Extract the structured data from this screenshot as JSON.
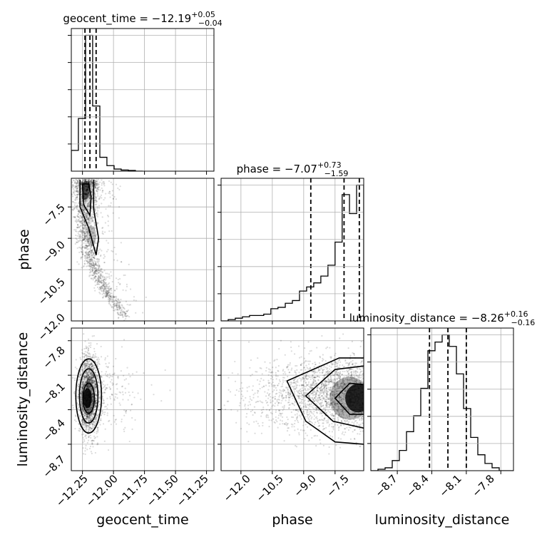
{
  "chart_data": {
    "type": "corner",
    "parameters": [
      "geocent_time",
      "phase",
      "luminosity_distance"
    ],
    "titles": [
      {
        "param": "geocent_time",
        "median": "−12.19",
        "plus": "+0.05",
        "minus": "−0.04"
      },
      {
        "param": "phase",
        "median": "−7.07",
        "plus": "+0.73",
        "minus": "−1.59"
      },
      {
        "param": "luminosity_distance",
        "median": "−8.26",
        "plus": "+0.16",
        "minus": "−0.16"
      }
    ],
    "ranges": {
      "geocent_time": [
        -12.34,
        -11.19
      ],
      "phase": [
        -12.95,
        -6.13
      ],
      "luminosity_distance": [
        -8.93,
        -7.69
      ]
    },
    "ticks": {
      "geocent_time": [
        -12.25,
        -12.0,
        -11.75,
        -11.5,
        -11.25
      ],
      "phase": [
        -12.0,
        -10.5,
        -9.0,
        -7.5
      ],
      "luminosity_distance": [
        -8.7,
        -8.4,
        -8.1,
        -7.8
      ]
    },
    "tick_labels": {
      "geocent_time": [
        "−12.25",
        "−12.00",
        "−11.75",
        "−11.50",
        "−11.25"
      ],
      "phase": [
        "−12.0",
        "−10.5",
        "−9.0",
        "−7.5"
      ],
      "luminosity_distance": [
        "−8.7",
        "−8.4",
        "−8.1",
        "−7.8"
      ]
    },
    "quantiles": {
      "geocent_time": [
        -12.23,
        -12.19,
        -12.14
      ],
      "phase": [
        -8.66,
        -7.07,
        -6.34
      ],
      "luminosity_distance": [
        -8.42,
        -8.26,
        -8.1
      ]
    },
    "histograms": {
      "geocent_time": {
        "edges": [
          -12.34,
          -12.283,
          -12.225,
          -12.168,
          -12.11,
          -12.053,
          -11.995,
          -11.938,
          -11.88,
          -11.823,
          -11.765
        ],
        "counts": [
          0.15,
          0.38,
          0.98,
          0.47,
          0.1,
          0.04,
          0.015,
          0.008,
          0.005,
          0.0
        ]
      },
      "phase": {
        "edges": [
          -12.95,
          -12.61,
          -12.27,
          -11.93,
          -11.59,
          -11.25,
          -10.91,
          -10.57,
          -10.23,
          -9.88,
          -9.54,
          -9.2,
          -8.86,
          -8.52,
          -8.18,
          -7.84,
          -7.5,
          -7.16,
          -6.81,
          -6.47,
          -6.13
        ],
        "counts": [
          0.0,
          0.01,
          0.02,
          0.03,
          0.04,
          0.04,
          0.05,
          0.09,
          0.1,
          0.13,
          0.15,
          0.22,
          0.25,
          0.28,
          0.33,
          0.41,
          0.58,
          0.93,
          0.79,
          1.0
        ]
      },
      "luminosity_distance": {
        "edges": [
          -8.93,
          -8.868,
          -8.806,
          -8.744,
          -8.682,
          -8.62,
          -8.558,
          -8.496,
          -8.434,
          -8.372,
          -8.31,
          -8.248,
          -8.186,
          -8.124,
          -8.062,
          -8.0,
          -7.938,
          -7.876,
          -7.814,
          -7.752,
          -7.69
        ],
        "counts": [
          0.0,
          0.01,
          0.02,
          0.07,
          0.14,
          0.27,
          0.38,
          0.57,
          0.83,
          0.89,
          0.94,
          0.86,
          0.67,
          0.43,
          0.23,
          0.11,
          0.05,
          0.02,
          0.0,
          0.0
        ]
      }
    },
    "grid": true
  }
}
